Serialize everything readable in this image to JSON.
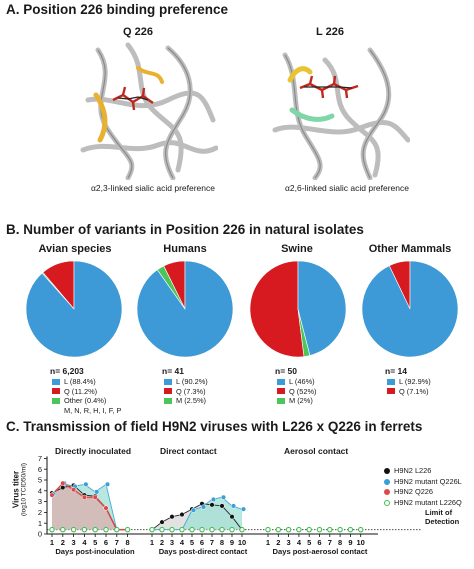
{
  "panel_a": {
    "title": "A. Position 226 binding preference",
    "left": {
      "label": "Q 226",
      "caption": "α2,3-linked sialic acid preference"
    },
    "right": {
      "label": "L 226",
      "caption": "α2,6-linked sialic acid preference"
    }
  },
  "panel_b": {
    "title": "B. Number of variants in Position 226 in natural isolates",
    "charts": [
      {
        "label": "Avian species",
        "n": "n= 6,203",
        "legend": [
          "L (88.4%)",
          "Q (11.2%)",
          "Other (0.4%)",
          "M, N, R, H, I, F, P"
        ]
      },
      {
        "label": "Humans",
        "n": "n= 41",
        "legend": [
          "L (90.2%)",
          "Q (7.3%)",
          "M (2.5%)"
        ]
      },
      {
        "label": "Swine",
        "n": "n= 50",
        "legend": [
          "L (46%)",
          "Q (52%)",
          "M (2%)"
        ]
      },
      {
        "label": "Other Mammals",
        "n": "n= 14",
        "legend": [
          "L (92.9%)",
          "Q (7.1%)"
        ]
      }
    ]
  },
  "panel_c": {
    "title": "C. Transmission of field H9N2 viruses with L226 x Q226 in ferrets",
    "groups": [
      "Directly inoculated",
      "Direct contact",
      "Aerosol contact"
    ],
    "xlabels": [
      "Days post-inoculation",
      "Days post-direct contact",
      "Days post-aerosol contact"
    ],
    "ylabel_line1": "Virus titer",
    "ylabel_line2": "(log10 TCID50/ml)",
    "lod": [
      "Limit of",
      "Detection"
    ],
    "legend": [
      "H9N2 L226",
      "H9N2 mutant Q226L",
      "H9N2 Q226",
      "H9N2 mutant L226Q"
    ]
  },
  "colors": {
    "L": "#3d9ad6",
    "Q": "#d71920",
    "other": "#4cc65a",
    "wt_L226": "#111111",
    "mut_Q226L": "#3a9ed8",
    "wt_Q226": "#e04848",
    "mut_L226Q": "#3fbf4f",
    "shade_gray": "#d8d8d8",
    "shade_teal": "#9fe0d6",
    "shade_red": "#f0a0a0"
  },
  "chart_data": [
    {
      "type": "pie",
      "title": "Avian species",
      "categories": [
        "L",
        "Q",
        "Other"
      ],
      "values": [
        88.4,
        11.2,
        0.4
      ]
    },
    {
      "type": "pie",
      "title": "Humans",
      "categories": [
        "L",
        "Q",
        "M"
      ],
      "values": [
        90.2,
        7.3,
        2.5
      ]
    },
    {
      "type": "pie",
      "title": "Swine",
      "categories": [
        "L",
        "Q",
        "M"
      ],
      "values": [
        46,
        52,
        2
      ]
    },
    {
      "type": "pie",
      "title": "Other Mammals",
      "categories": [
        "L",
        "Q"
      ],
      "values": [
        92.9,
        7.1
      ]
    },
    {
      "type": "line",
      "xlabel": "Days post-inoculation",
      "ylabel": "Virus titer (log10 TCID50/ml)",
      "ylim": [
        0,
        7
      ],
      "x": [
        1,
        2,
        3,
        4,
        5,
        6,
        7,
        8
      ],
      "series": [
        {
          "name": "H9N2 L226",
          "values": [
            3.8,
            4.3,
            4.5,
            3.6,
            3.5,
            2.4,
            0.4,
            0.4
          ]
        },
        {
          "name": "H9N2 mutant Q226L",
          "values": [
            3.7,
            4.7,
            4.4,
            4.6,
            3.9,
            4.6,
            0.4,
            0.4
          ]
        },
        {
          "name": "H9N2 Q226",
          "values": [
            3.6,
            4.7,
            4.1,
            3.4,
            3.4,
            2.4,
            0.4,
            0.4
          ]
        },
        {
          "name": "H9N2 mutant L226Q",
          "values": [
            0.4,
            0.4,
            0.4,
            0.4,
            0.4,
            0.4,
            0.4,
            0.4
          ]
        }
      ]
    },
    {
      "type": "line",
      "xlabel": "Days post-direct contact",
      "ylabel": "Virus titer (log10 TCID50/ml)",
      "ylim": [
        0,
        7
      ],
      "x": [
        1,
        2,
        3,
        4,
        5,
        6,
        7,
        8,
        9,
        10
      ],
      "series": [
        {
          "name": "H9N2 L226",
          "values": [
            0.4,
            1.1,
            1.6,
            1.8,
            2.3,
            2.8,
            2.7,
            2.6,
            1.6,
            0.4
          ]
        },
        {
          "name": "H9N2 mutant Q226L",
          "values": [
            0.4,
            0.4,
            0.4,
            0.4,
            2.2,
            2.5,
            3.2,
            3.4,
            2.6,
            2.3
          ]
        },
        {
          "name": "H9N2 Q226",
          "values": [
            0.4,
            0.4,
            0.4,
            0.4,
            0.4,
            0.4,
            0.4,
            0.4,
            0.4,
            0.4
          ]
        },
        {
          "name": "H9N2 mutant L226Q",
          "values": [
            0.4,
            0.4,
            0.4,
            0.4,
            0.4,
            0.4,
            0.4,
            0.4,
            0.4,
            0.4
          ]
        }
      ]
    },
    {
      "type": "line",
      "xlabel": "Days post-aerosol contact",
      "ylabel": "Virus titer (log10 TCID50/ml)",
      "ylim": [
        0,
        7
      ],
      "x": [
        1,
        2,
        3,
        4,
        5,
        6,
        7,
        8,
        9,
        10
      ],
      "series": [
        {
          "name": "H9N2 L226",
          "values": [
            0.4,
            0.4,
            0.4,
            0.4,
            0.4,
            0.4,
            0.4,
            0.4,
            0.4,
            0.4
          ]
        },
        {
          "name": "H9N2 mutant Q226L",
          "values": [
            0.4,
            0.4,
            0.4,
            0.4,
            0.4,
            0.4,
            0.4,
            0.4,
            0.4,
            0.4
          ]
        },
        {
          "name": "H9N2 Q226",
          "values": [
            0.4,
            0.4,
            0.4,
            0.4,
            0.4,
            0.4,
            0.4,
            0.4,
            0.4,
            0.4
          ]
        },
        {
          "name": "H9N2 mutant L226Q",
          "values": [
            0.4,
            0.4,
            0.4,
            0.4,
            0.4,
            0.4,
            0.4,
            0.4,
            0.4,
            0.4
          ]
        }
      ]
    }
  ]
}
